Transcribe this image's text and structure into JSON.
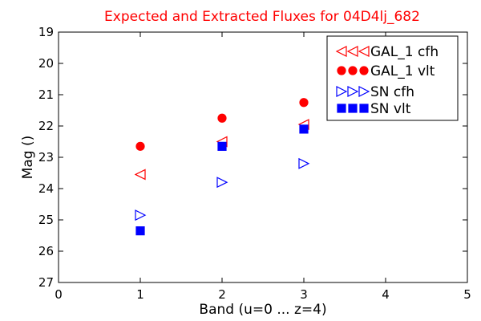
{
  "chart_data": {
    "type": "scatter",
    "title": "Expected and Extracted Fluxes for 04D4lj_682",
    "title_color": "#ff0000",
    "xlabel": "Band (u=0 ... z=4)",
    "ylabel": "Mag ()",
    "xlim": [
      0,
      5
    ],
    "ylim": [
      27,
      19
    ],
    "y_inverted": true,
    "grid": false,
    "legend_position": "top-right",
    "xticks": [
      0,
      1,
      2,
      3,
      4,
      5
    ],
    "yticks": [
      19,
      20,
      21,
      22,
      23,
      24,
      25,
      26,
      27
    ],
    "series": [
      {
        "name": "GAL_1 cfh",
        "marker": "triangle-left",
        "color": "#ff0000",
        "filled": false,
        "x": [
          1,
          2,
          3
        ],
        "y": [
          23.55,
          22.5,
          21.95
        ]
      },
      {
        "name": "GAL_1 vlt",
        "marker": "circle",
        "color": "#ff0000",
        "filled": true,
        "x": [
          1,
          2,
          3
        ],
        "y": [
          22.65,
          21.75,
          21.25
        ]
      },
      {
        "name": "SN cfh",
        "marker": "triangle-right",
        "color": "#0000ff",
        "filled": false,
        "x": [
          1,
          2,
          3
        ],
        "y": [
          24.85,
          23.8,
          23.2
        ]
      },
      {
        "name": "SN vlt",
        "marker": "square",
        "color": "#0000ff",
        "filled": true,
        "x": [
          1,
          2,
          3
        ],
        "y": [
          25.35,
          22.65,
          22.1
        ]
      }
    ]
  }
}
